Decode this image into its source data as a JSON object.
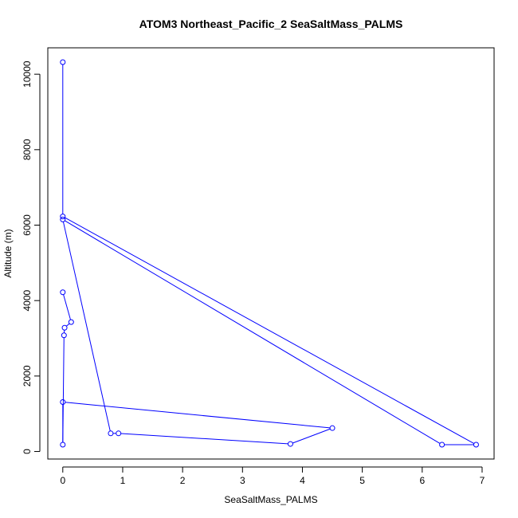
{
  "chart_data": {
    "type": "line",
    "title": "ATOM3 Northeast_Pacific_2 SeaSaltMass_PALMS",
    "xlabel": "SeaSaltMass_PALMS",
    "ylabel": "Altitude (m)",
    "xlim": [
      -0.25,
      7.2
    ],
    "ylim": [
      -200,
      10700
    ],
    "xticks": [
      0,
      1,
      2,
      3,
      4,
      5,
      6,
      7
    ],
    "yticks": [
      0,
      2000,
      4000,
      6000,
      8000,
      10000
    ],
    "grid": false,
    "series": [
      {
        "color": "#0000ff",
        "marker": "open-circle",
        "points": [
          [
            0.0,
            10320
          ],
          [
            0.0,
            6230
          ],
          [
            6.9,
            180
          ],
          [
            6.33,
            180
          ],
          [
            0.0,
            6150
          ],
          [
            0.8,
            480
          ],
          [
            0.93,
            480
          ],
          [
            3.8,
            200
          ],
          [
            4.5,
            620
          ],
          [
            0.0,
            1310
          ],
          [
            0.0,
            180
          ],
          [
            0.02,
            3080
          ],
          [
            0.03,
            3280
          ],
          [
            0.14,
            3430
          ],
          [
            0.0,
            4220
          ]
        ]
      }
    ]
  }
}
